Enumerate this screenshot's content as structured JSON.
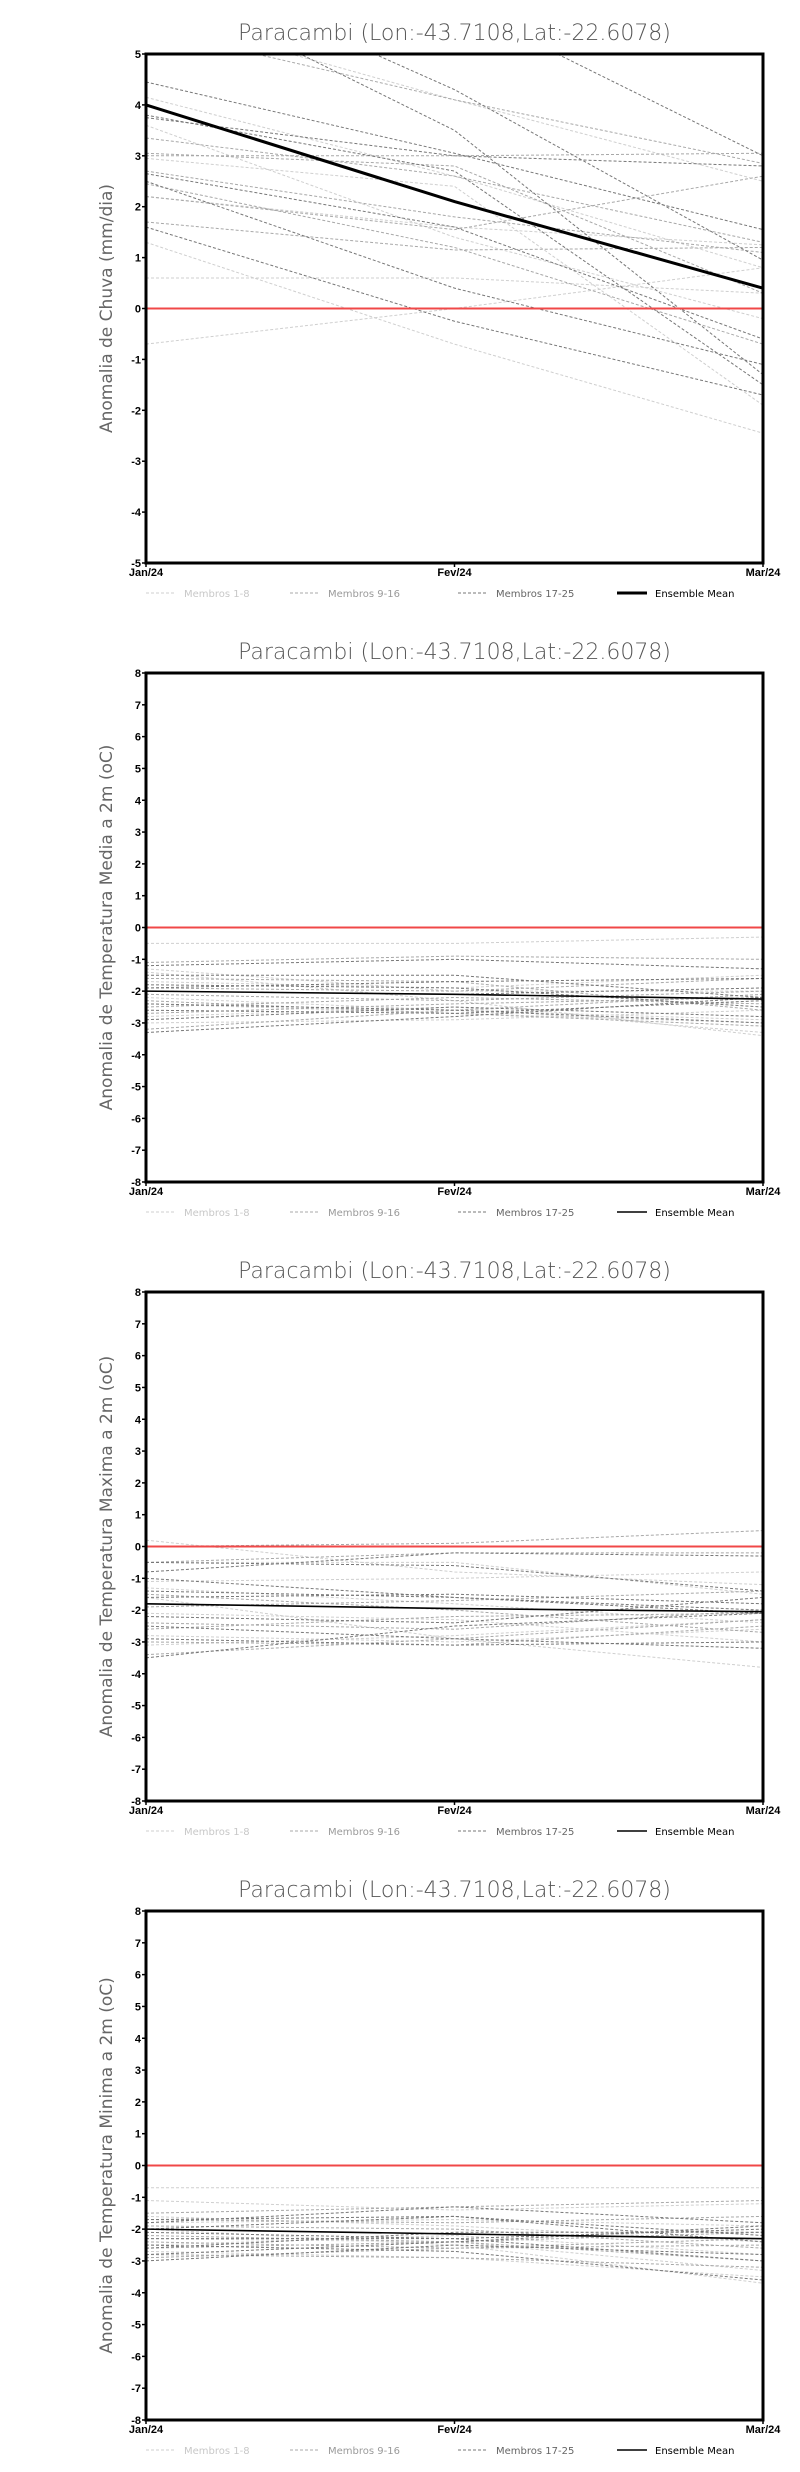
{
  "legend": {
    "members_1_8": "Membros 1-8",
    "members_9_16": "Membros 9-16",
    "members_17_25": "Membros 17-25",
    "ensemble_mean": "Ensemble Mean"
  },
  "colors": {
    "members_1_8": "#cfcfcf",
    "members_9_16": "#a8a8a8",
    "members_17_25": "#777777",
    "ensemble_mean": "#000000",
    "zero_line": "#f04848"
  },
  "chart_data": [
    {
      "type": "line",
      "title": "Paracambi (Lon:-43.7108,Lat:-22.6078)",
      "ylabel": "Anomalia de Chuva (mm/dia)",
      "xlabel": "",
      "categories": [
        "Jan/24",
        "Fev/24",
        "Mar/24"
      ],
      "ylim": [
        -5,
        5
      ],
      "yticks": [
        "-5",
        "-4",
        "-3",
        "-2",
        "-1",
        "0",
        "1",
        "2",
        "3",
        "4",
        "5"
      ],
      "reference_line": 0,
      "ensemble_mean": [
        4.0,
        2.1,
        0.4
      ],
      "members_1_8": [
        [
          4.15,
          2.6,
          0.8
        ],
        [
          1.3,
          -0.7,
          -2.45
        ],
        [
          -0.7,
          0.0,
          0.8
        ],
        [
          0.6,
          0.6,
          0.3
        ],
        [
          2.2,
          1.6,
          1.25
        ],
        [
          3.6,
          1.4,
          -0.2
        ],
        [
          5.8,
          4.1,
          2.5
        ],
        [
          2.95,
          2.4,
          -1.9
        ]
      ],
      "members_9_16": [
        [
          3.05,
          2.8,
          0.3
        ],
        [
          2.7,
          1.8,
          1.1
        ],
        [
          3.35,
          2.6,
          1.3
        ],
        [
          2.45,
          1.2,
          -0.7
        ],
        [
          3.0,
          3.0,
          3.05
        ],
        [
          2.2,
          1.55,
          2.6
        ],
        [
          5.5,
          4.1,
          2.85
        ],
        [
          1.7,
          1.15,
          1.2
        ]
      ],
      "members_17_25": [
        [
          4.45,
          3.05,
          1.55
        ],
        [
          3.75,
          3.0,
          2.8
        ],
        [
          2.5,
          0.4,
          -1.1
        ],
        [
          1.6,
          -0.25,
          -1.7
        ],
        [
          6.5,
          3.5,
          -1.3
        ],
        [
          7.0,
          4.3,
          0.95
        ],
        [
          2.65,
          1.6,
          -0.6
        ],
        [
          3.8,
          2.7,
          -1.5
        ],
        [
          8.0,
          6.0,
          3.0
        ]
      ]
    },
    {
      "type": "line",
      "title": "Paracambi (Lon:-43.7108,Lat:-22.6078)",
      "ylabel": "Anomalia de Temperatura Media a 2m (oC)",
      "xlabel": "",
      "categories": [
        "Jan/24",
        "Fev/24",
        "Mar/24"
      ],
      "ylim": [
        -8,
        8
      ],
      "yticks": [
        "-8",
        "-7",
        "-6",
        "-5",
        "-4",
        "-3",
        "-2",
        "-1",
        "0",
        "1",
        "2",
        "3",
        "4",
        "5",
        "6",
        "7",
        "8"
      ],
      "reference_line": 0,
      "ensemble_mean": [
        -2.0,
        -2.1,
        -2.25
      ],
      "members_1_8": [
        [
          -0.5,
          -0.5,
          -0.3
        ],
        [
          -1.4,
          -2.3,
          -3.4
        ],
        [
          -2.4,
          -2.7,
          -3.0
        ],
        [
          -1.3,
          -2.0,
          -2.0
        ],
        [
          -2.8,
          -2.5,
          -3.3
        ],
        [
          -1.7,
          -1.9,
          -1.5
        ],
        [
          -2.2,
          -2.6,
          -2.9
        ],
        [
          -3.0,
          -2.9,
          -2.6
        ]
      ],
      "members_9_16": [
        [
          -1.1,
          -0.9,
          -1.0
        ],
        [
          -1.6,
          -1.7,
          -2.6
        ],
        [
          -2.1,
          -2.3,
          -2.0
        ],
        [
          -2.5,
          -2.2,
          -2.4
        ],
        [
          -1.9,
          -2.0,
          -1.6
        ],
        [
          -2.7,
          -2.4,
          -2.2
        ],
        [
          -3.2,
          -2.6,
          -2.1
        ],
        [
          -2.3,
          -2.7,
          -3.1
        ]
      ],
      "members_17_25": [
        [
          -1.2,
          -1.0,
          -1.3
        ],
        [
          -1.5,
          -1.5,
          -2.2
        ],
        [
          -2.0,
          -2.1,
          -1.9
        ],
        [
          -2.6,
          -2.7,
          -2.3
        ],
        [
          -3.3,
          -2.8,
          -2.2
        ],
        [
          -1.8,
          -1.9,
          -2.5
        ],
        [
          -2.9,
          -2.5,
          -2.8
        ],
        [
          -2.4,
          -2.6,
          -3.0
        ],
        [
          -1.9,
          -1.7,
          -1.6
        ]
      ]
    },
    {
      "type": "line",
      "title": "Paracambi (Lon:-43.7108,Lat:-22.6078)",
      "ylabel": "Anomalia de Temperatura Maxima a 2m (oC)",
      "xlabel": "",
      "categories": [
        "Jan/24",
        "Fev/24",
        "Mar/24"
      ],
      "ylim": [
        -8,
        8
      ],
      "yticks": [
        "-8",
        "-7",
        "-6",
        "-5",
        "-4",
        "-3",
        "-2",
        "-1",
        "0",
        "1",
        "2",
        "3",
        "4",
        "5",
        "6",
        "7",
        "8"
      ],
      "reference_line": 0,
      "ensemble_mean": [
        -1.8,
        -1.95,
        -2.05
      ],
      "members_1_8": [
        [
          0.2,
          -0.8,
          -1.2
        ],
        [
          -1.1,
          -1.0,
          -0.8
        ],
        [
          -2.1,
          -2.3,
          -3.0
        ],
        [
          -1.6,
          -2.9,
          -3.8
        ],
        [
          -2.8,
          -3.0,
          -2.6
        ],
        [
          -0.5,
          -0.5,
          -1.5
        ],
        [
          -3.1,
          -2.8,
          -2.3
        ],
        [
          -1.3,
          -1.8,
          -2.4
        ]
      ],
      "members_9_16": [
        [
          0.0,
          0.1,
          0.5
        ],
        [
          -0.5,
          -0.2,
          -0.2
        ],
        [
          -1.9,
          -1.7,
          -1.4
        ],
        [
          -2.4,
          -2.6,
          -2.0
        ],
        [
          -3.0,
          -3.1,
          -2.5
        ],
        [
          -1.5,
          -2.0,
          -2.7
        ],
        [
          -2.6,
          -2.2,
          -2.1
        ],
        [
          -3.4,
          -2.9,
          -2.3
        ]
      ],
      "members_17_25": [
        [
          -0.5,
          -0.6,
          -1.4
        ],
        [
          -0.8,
          -0.2,
          -0.3
        ],
        [
          -1.4,
          -1.6,
          -2.0
        ],
        [
          -2.2,
          -2.4,
          -1.6
        ],
        [
          -3.5,
          -2.5,
          -2.1
        ],
        [
          -2.5,
          -2.9,
          -3.2
        ],
        [
          -1.6,
          -1.5,
          -1.8
        ],
        [
          -2.9,
          -3.1,
          -3.0
        ],
        [
          -1.0,
          -1.6,
          -2.1
        ]
      ]
    },
    {
      "type": "line",
      "title": "Paracambi (Lon:-43.7108,Lat:-22.6078)",
      "ylabel": "Anomalia de Temperatura Minima a 2m (oC)",
      "xlabel": "",
      "categories": [
        "Jan/24",
        "Fev/24",
        "Mar/24"
      ],
      "ylim": [
        -8,
        8
      ],
      "yticks": [
        "-8",
        "-7",
        "-6",
        "-5",
        "-4",
        "-3",
        "-2",
        "-1",
        "0",
        "1",
        "2",
        "3",
        "4",
        "5",
        "6",
        "7",
        "8"
      ],
      "reference_line": 0,
      "ensemble_mean": [
        -2.0,
        -2.15,
        -2.3
      ],
      "members_1_8": [
        [
          -1.1,
          -1.4,
          -1.2
        ],
        [
          -2.0,
          -2.5,
          -3.7
        ],
        [
          -2.3,
          -2.4,
          -3.3
        ],
        [
          -1.8,
          -1.7,
          -1.9
        ],
        [
          -2.7,
          -2.9,
          -3.5
        ],
        [
          -0.7,
          -0.7,
          -0.7
        ],
        [
          -2.5,
          -2.2,
          -2.8
        ],
        [
          -1.6,
          -1.9,
          -2.4
        ]
      ],
      "members_9_16": [
        [
          -1.5,
          -1.3,
          -1.1
        ],
        [
          -1.9,
          -2.0,
          -2.6
        ],
        [
          -2.6,
          -2.4,
          -2.1
        ],
        [
          -2.2,
          -2.4,
          -3.0
        ],
        [
          -2.9,
          -2.6,
          -2.3
        ],
        [
          -1.7,
          -1.8,
          -1.6
        ],
        [
          -2.4,
          -2.6,
          -2.5
        ],
        [
          -2.8,
          -2.9,
          -3.2
        ]
      ],
      "members_17_25": [
        [
          -1.8,
          -1.3,
          -1.8
        ],
        [
          -2.0,
          -1.6,
          -2.4
        ],
        [
          -2.3,
          -2.3,
          -2.0
        ],
        [
          -2.6,
          -2.1,
          -2.1
        ],
        [
          -3.0,
          -2.5,
          -2.8
        ],
        [
          -2.1,
          -2.3,
          -3.0
        ],
        [
          -2.5,
          -2.7,
          -3.6
        ],
        [
          -1.7,
          -1.6,
          -2.2
        ],
        [
          -2.8,
          -2.4,
          -1.9
        ]
      ]
    }
  ]
}
